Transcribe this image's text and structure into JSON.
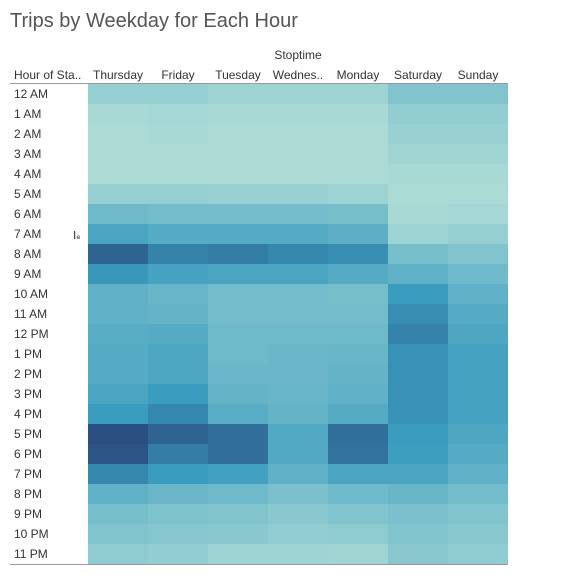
{
  "chart_data": {
    "type": "heatmap",
    "title": "Trips by Weekday for Each Hour",
    "column_group_label": "Stoptime",
    "row_header_label": "Hour of Sta..",
    "columns": [
      "Thursday",
      "Friday",
      "Tuesday",
      "Wednes..",
      "Monday",
      "Saturday",
      "Sunday"
    ],
    "rows": [
      "12 AM",
      "1 AM",
      "2 AM",
      "3 AM",
      "4 AM",
      "5 AM",
      "6 AM",
      "7 AM",
      "8 AM",
      "9 AM",
      "10 AM",
      "11 AM",
      "12 PM",
      "1 PM",
      "2 PM",
      "3 PM",
      "4 PM",
      "5 PM",
      "6 PM",
      "7 PM",
      "8 PM",
      "9 PM",
      "10 PM",
      "11 PM"
    ],
    "values": [
      [
        0.22,
        0.22,
        0.18,
        0.18,
        0.18,
        0.32,
        0.32
      ],
      [
        0.12,
        0.14,
        0.12,
        0.12,
        0.12,
        0.24,
        0.24
      ],
      [
        0.1,
        0.12,
        0.1,
        0.1,
        0.1,
        0.2,
        0.2
      ],
      [
        0.1,
        0.1,
        0.1,
        0.1,
        0.1,
        0.16,
        0.16
      ],
      [
        0.1,
        0.1,
        0.1,
        0.1,
        0.1,
        0.12,
        0.12
      ],
      [
        0.22,
        0.22,
        0.2,
        0.2,
        0.18,
        0.1,
        0.1
      ],
      [
        0.42,
        0.4,
        0.4,
        0.4,
        0.38,
        0.12,
        0.14
      ],
      [
        0.62,
        0.56,
        0.56,
        0.56,
        0.52,
        0.18,
        0.22
      ],
      [
        0.92,
        0.8,
        0.82,
        0.78,
        0.76,
        0.38,
        0.32
      ],
      [
        0.72,
        0.64,
        0.62,
        0.62,
        0.56,
        0.5,
        0.42
      ],
      [
        0.5,
        0.46,
        0.4,
        0.4,
        0.38,
        0.7,
        0.5
      ],
      [
        0.5,
        0.48,
        0.4,
        0.4,
        0.4,
        0.76,
        0.56
      ],
      [
        0.54,
        0.56,
        0.42,
        0.42,
        0.42,
        0.8,
        0.6
      ],
      [
        0.56,
        0.6,
        0.42,
        0.44,
        0.46,
        0.74,
        0.64
      ],
      [
        0.56,
        0.6,
        0.44,
        0.44,
        0.48,
        0.74,
        0.64
      ],
      [
        0.62,
        0.7,
        0.48,
        0.46,
        0.5,
        0.74,
        0.64
      ],
      [
        0.7,
        0.78,
        0.54,
        0.48,
        0.56,
        0.74,
        0.64
      ],
      [
        1.0,
        0.92,
        0.88,
        0.58,
        0.88,
        0.7,
        0.6
      ],
      [
        0.98,
        0.82,
        0.88,
        0.58,
        0.86,
        0.68,
        0.56
      ],
      [
        0.78,
        0.7,
        0.66,
        0.5,
        0.62,
        0.62,
        0.5
      ],
      [
        0.5,
        0.44,
        0.42,
        0.36,
        0.42,
        0.46,
        0.4
      ],
      [
        0.38,
        0.34,
        0.32,
        0.28,
        0.32,
        0.36,
        0.32
      ],
      [
        0.32,
        0.3,
        0.28,
        0.24,
        0.26,
        0.32,
        0.28
      ],
      [
        0.26,
        0.24,
        0.18,
        0.18,
        0.16,
        0.28,
        0.26
      ]
    ],
    "value_scale": "relative trip count (0 = lowest, 1 = highest), encoded as color intensity",
    "color_low": "#bfe6da",
    "color_mid": "#3a9cbf",
    "color_high": "#2b4f80"
  }
}
